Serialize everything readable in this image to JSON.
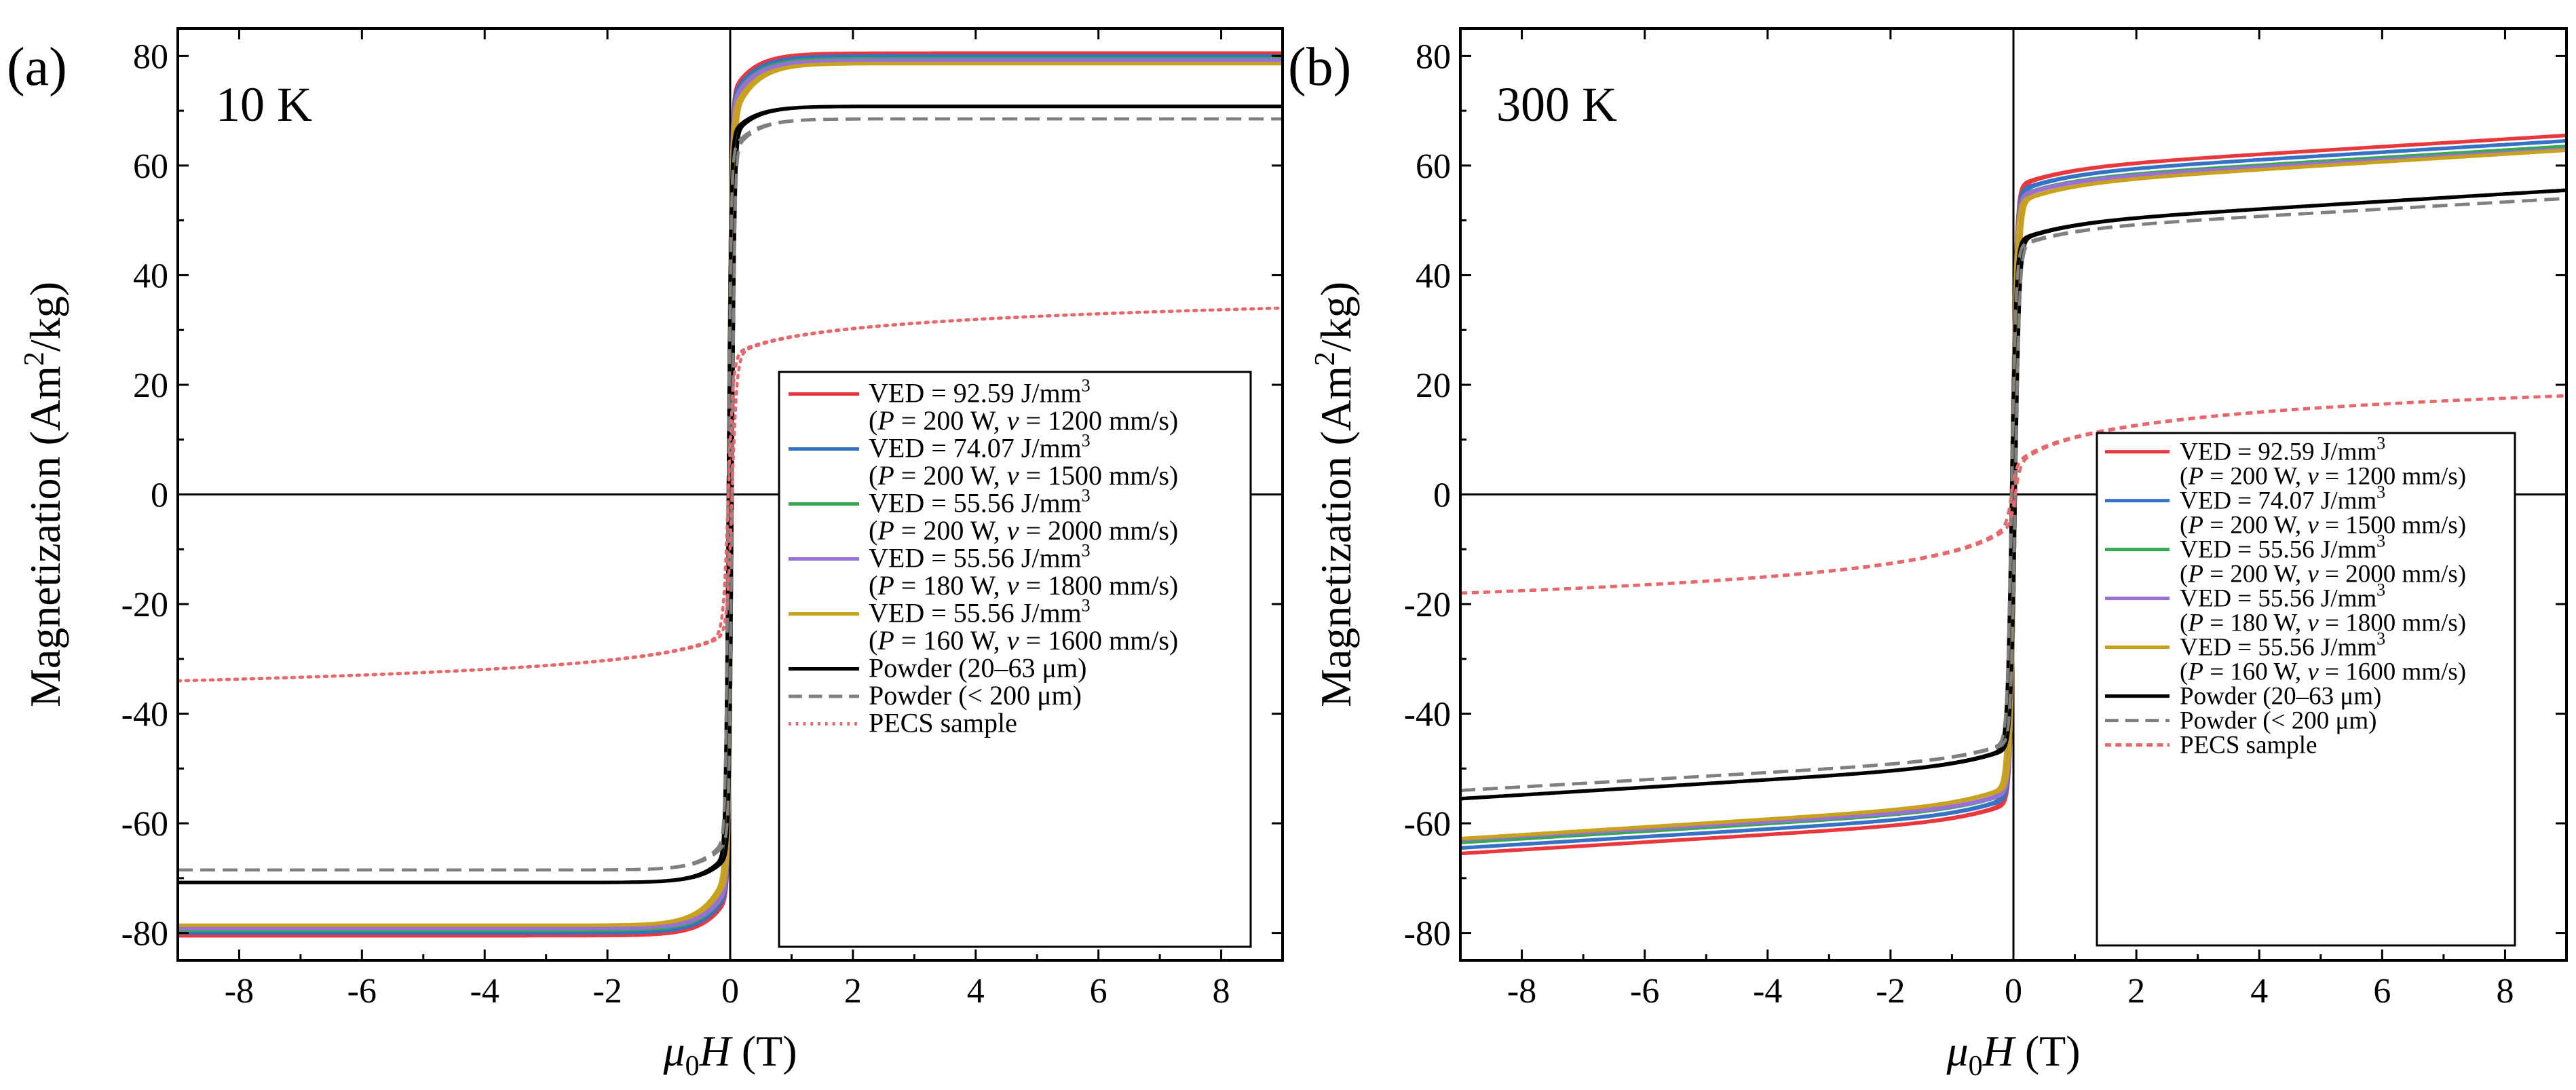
{
  "chart_data": [
    {
      "type": "line",
      "panel_letter": "(a)",
      "temperature_label": "10 K",
      "xlabel_italic": "μ",
      "xlabel_sub": "0",
      "xlabel_var": "H",
      "xlabel_unit": " (T)",
      "ylabel_main": "Magnetization (Am",
      "ylabel_sup": "2",
      "ylabel_tail": "/kg)",
      "xlim": [
        -9,
        9
      ],
      "ylim": [
        -85,
        85
      ],
      "xticks": [
        -8,
        -6,
        -4,
        -2,
        0,
        2,
        4,
        6,
        8
      ],
      "yticks": [
        -80,
        -60,
        -40,
        -20,
        0,
        20,
        40,
        60,
        80
      ],
      "series": [
        {
          "name": "VED = 92.59 J/mm3",
          "params": "(P = 200 W, v = 1200 mm/s)",
          "color": "#e8383d",
          "style": "solid",
          "Ms": 80.5,
          "Mr": 72,
          "shape": "sharp"
        },
        {
          "name": "VED = 74.07 J/mm3",
          "params": "(P = 200 W, v = 1500 mm/s)",
          "color": "#3572c6",
          "style": "solid",
          "Ms": 80.0,
          "Mr": 71,
          "shape": "sharp"
        },
        {
          "name": "VED = 55.56 J/mm3",
          "params": "(P = 200 W, v = 2000 mm/s)",
          "color": "#35a853",
          "style": "solid",
          "Ms": 79.5,
          "Mr": 70,
          "shape": "sharp"
        },
        {
          "name": "VED = 55.56 J/mm3",
          "params": "(P = 180 W, v = 1800 mm/s)",
          "color": "#9a6fd6",
          "style": "solid",
          "Ms": 79.2,
          "Mr": 70,
          "shape": "sharp"
        },
        {
          "name": "VED = 55.56 J/mm3",
          "params": "(P = 160 W, v = 1600 mm/s)",
          "color": "#c9a21c",
          "style": "solid",
          "Ms": 78.6,
          "Mr": 68,
          "shape": "sharp"
        },
        {
          "name": "Powder (20–63 μm)",
          "params": "",
          "color": "#000000",
          "style": "solid",
          "Ms": 70.8,
          "Mr": 65,
          "shape": "sharp"
        },
        {
          "name": "Powder (< 200 μm)",
          "params": "",
          "color": "#808080",
          "style": "dashed",
          "Ms": 68.5,
          "Mr": 62,
          "shape": "sharp"
        },
        {
          "name": "PECS sample",
          "params": "",
          "color": "#e8676a",
          "style": "dotted",
          "Ms": 34,
          "Mr": 25,
          "shape": "soft"
        }
      ],
      "legend_entries": [
        {
          "main": "VED = 92.59 J/mm",
          "sup": "3",
          "p_line": [
            "(",
            "P",
            " = 200 W, ",
            "v",
            " = 1200 mm/s)"
          ]
        },
        {
          "main": "VED = 74.07 J/mm",
          "sup": "3",
          "p_line": [
            "(",
            "P",
            " = 200 W, ",
            "v",
            " = 1500 mm/s)"
          ]
        },
        {
          "main": "VED = 55.56 J/mm",
          "sup": "3",
          "p_line": [
            "(",
            "P",
            " = 200 W, ",
            "v",
            " = 2000 mm/s)"
          ]
        },
        {
          "main": "VED = 55.56 J/mm",
          "sup": "3",
          "p_line": [
            "(",
            "P",
            " = 180 W, ",
            "v",
            " = 1800 mm/s)"
          ]
        },
        {
          "main": "VED = 55.56 J/mm",
          "sup": "3",
          "p_line": [
            "(",
            "P",
            " = 160 W, ",
            "v",
            " = 1600 mm/s)"
          ]
        },
        {
          "main": "Powder (20–63 μm)",
          "sup": "",
          "p_line": null
        },
        {
          "main": "Powder (< 200 μm)",
          "sup": "",
          "p_line": null
        },
        {
          "main": "PECS sample",
          "sup": "",
          "p_line": null
        }
      ],
      "legend_placement": "center-right"
    },
    {
      "type": "line",
      "panel_letter": "(b)",
      "temperature_label": "300 K",
      "xlabel_italic": "μ",
      "xlabel_sub": "0",
      "xlabel_var": "H",
      "xlabel_unit": " (T)",
      "ylabel_main": "Magnetization (Am",
      "ylabel_sup": "2",
      "ylabel_tail": "/kg)",
      "xlim": [
        -9,
        9
      ],
      "ylim": [
        -85,
        85
      ],
      "xticks": [
        -8,
        -6,
        -4,
        -2,
        0,
        2,
        4,
        6,
        8
      ],
      "yticks": [
        -80,
        -60,
        -40,
        -20,
        0,
        20,
        40,
        60,
        80
      ],
      "series": [
        {
          "name": "VED = 92.59 J/mm3",
          "params": "(P = 200 W, v = 1200 mm/s)",
          "color": "#e8383d",
          "style": "solid",
          "Ms": 65.5,
          "Mr": 56,
          "shape": "ramp"
        },
        {
          "name": "VED = 74.07 J/mm3",
          "params": "(P = 200 W, v = 1500 mm/s)",
          "color": "#3572c6",
          "style": "solid",
          "Ms": 64.5,
          "Mr": 55,
          "shape": "ramp"
        },
        {
          "name": "VED = 55.56 J/mm3",
          "params": "(P = 200 W, v = 2000 mm/s)",
          "color": "#35a853",
          "style": "solid",
          "Ms": 63.5,
          "Mr": 54,
          "shape": "ramp"
        },
        {
          "name": "VED = 55.56 J/mm3",
          "params": "(P = 180 W, v = 1800 mm/s)",
          "color": "#9a6fd6",
          "style": "solid",
          "Ms": 63.0,
          "Mr": 54,
          "shape": "ramp"
        },
        {
          "name": "VED = 55.56 J/mm3",
          "params": "(P = 160 W, v = 1600 mm/s)",
          "color": "#c9a21c",
          "style": "solid",
          "Ms": 62.8,
          "Mr": 53,
          "shape": "ramp"
        },
        {
          "name": "Powder (20–63 μm)",
          "params": "",
          "color": "#000000",
          "style": "solid",
          "Ms": 55.5,
          "Mr": 46,
          "shape": "ramp"
        },
        {
          "name": "Powder (< 200 μm)",
          "params": "",
          "color": "#808080",
          "style": "dashed",
          "Ms": 54.0,
          "Mr": 45,
          "shape": "ramp"
        },
        {
          "name": "PECS sample",
          "params": "",
          "color": "#e8676a",
          "style": "dashed-fine",
          "Ms": 18,
          "Mr": 5,
          "shape": "soft"
        }
      ],
      "legend_entries": [
        {
          "main": "VED = 92.59 J/mm",
          "sup": "3",
          "p_line": [
            "(",
            "P",
            " = 200 W, ",
            "v",
            " = 1200 mm/s)"
          ]
        },
        {
          "main": "VED = 74.07 J/mm",
          "sup": "3",
          "p_line": [
            "(",
            "P",
            " = 200 W, ",
            "v",
            " = 1500 mm/s)"
          ]
        },
        {
          "main": "VED = 55.56 J/mm",
          "sup": "3",
          "p_line": [
            "(",
            "P",
            " = 200 W, ",
            "v",
            " = 2000 mm/s)"
          ]
        },
        {
          "main": "VED = 55.56 J/mm",
          "sup": "3",
          "p_line": [
            "(",
            "P",
            " = 180 W, ",
            "v",
            " = 1800 mm/s)"
          ]
        },
        {
          "main": "VED = 55.56 J/mm",
          "sup": "3",
          "p_line": [
            "(",
            "P",
            " = 160 W, ",
            "v",
            " = 1600 mm/s)"
          ]
        },
        {
          "main": "Powder (20–63 μm)",
          "sup": "",
          "p_line": null
        },
        {
          "main": "Powder (< 200 μm)",
          "sup": "",
          "p_line": null
        },
        {
          "main": "PECS sample",
          "sup": "",
          "p_line": null
        }
      ],
      "legend_placement": "lower-right"
    }
  ]
}
